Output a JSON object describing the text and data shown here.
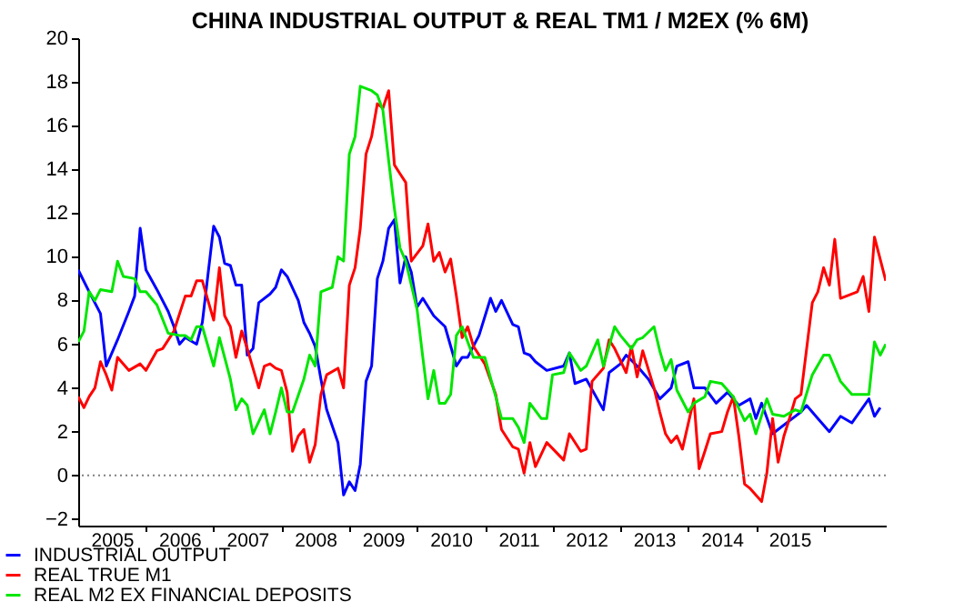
{
  "chart_data": {
    "type": "line",
    "title": "CHINA INDUSTRIAL OUTPUT & REAL TM1 / M2EX (% 6M)",
    "xlim": [
      "2005-01",
      "2016-12"
    ],
    "xticks": [
      {
        "value": "2005-07",
        "label": "2005"
      },
      {
        "value": "2006-01",
        "label": null
      },
      {
        "value": "2006-07",
        "label": "2006"
      },
      {
        "value": "2007-01",
        "label": null
      },
      {
        "value": "2007-07",
        "label": "2007"
      },
      {
        "value": "2008-01",
        "label": null
      },
      {
        "value": "2008-07",
        "label": "2008"
      },
      {
        "value": "2009-01",
        "label": null
      },
      {
        "value": "2009-07",
        "label": "2009"
      },
      {
        "value": "2010-01",
        "label": null
      },
      {
        "value": "2010-07",
        "label": "2010"
      },
      {
        "value": "2011-01",
        "label": null
      },
      {
        "value": "2011-07",
        "label": "2011"
      },
      {
        "value": "2012-01",
        "label": null
      },
      {
        "value": "2012-07",
        "label": "2012"
      },
      {
        "value": "2013-01",
        "label": null
      },
      {
        "value": "2013-07",
        "label": "2013"
      },
      {
        "value": "2014-01",
        "label": null
      },
      {
        "value": "2014-07",
        "label": "2014"
      },
      {
        "value": "2015-01",
        "label": null
      },
      {
        "value": "2015-07",
        "label": "2015"
      },
      {
        "value": "2016-01",
        "label": null
      }
    ],
    "ylim": [
      -2.3,
      20
    ],
    "yticks": [
      -2,
      0,
      2,
      4,
      6,
      8,
      10,
      12,
      14,
      16,
      18,
      20
    ],
    "grid": false,
    "legend": "bottom left",
    "ref_lines": [
      {
        "axis": "y",
        "value": 0,
        "color": "#808080",
        "line_style": "dotted"
      }
    ],
    "series": [
      {
        "name": "INDUSTRIAL OUTPUT",
        "color": "#0000ff",
        "x": [
          "2005-01",
          "2005-03",
          "2005-05",
          "2005-06",
          "2005-08",
          "2005-10",
          "2005-11",
          "2005-12",
          "2006-01",
          "2006-03",
          "2006-05",
          "2006-06",
          "2006-07",
          "2006-08",
          "2006-10",
          "2006-11",
          "2007-01",
          "2007-02",
          "2007-03",
          "2007-04",
          "2007-05",
          "2007-06",
          "2007-07",
          "2007-08",
          "2007-09",
          "2007-11",
          "2007-12",
          "2008-01",
          "2008-02",
          "2008-04",
          "2008-05",
          "2008-06",
          "2008-07",
          "2008-08",
          "2008-09",
          "2008-11",
          "2008-12",
          "2009-01",
          "2009-02",
          "2009-03",
          "2009-04",
          "2009-05",
          "2009-06",
          "2009-07",
          "2009-08",
          "2009-09",
          "2009-10",
          "2009-11",
          "2009-12",
          "2010-01",
          "2010-02",
          "2010-04",
          "2010-06",
          "2010-08",
          "2010-09",
          "2010-10",
          "2010-12",
          "2011-02",
          "2011-03",
          "2011-04",
          "2011-06",
          "2011-07",
          "2011-08",
          "2011-09",
          "2011-10",
          "2011-12",
          "2012-03",
          "2012-04",
          "2012-05",
          "2012-07",
          "2012-10",
          "2012-11",
          "2013-01",
          "2013-02",
          "2013-04",
          "2013-06",
          "2013-08",
          "2013-10",
          "2013-11",
          "2014-01",
          "2014-02",
          "2014-04",
          "2014-06",
          "2014-08",
          "2014-10",
          "2014-12",
          "2015-01",
          "2015-02",
          "2015-04",
          "2015-05",
          "2015-07",
          "2015-09",
          "2015-10",
          "2015-12",
          "2016-02",
          "2016-04",
          "2016-06",
          "2016-09",
          "2016-10",
          "2016-11"
        ],
        "values": [
          9.4,
          8.4,
          7.4,
          5.0,
          6.2,
          7.5,
          8.2,
          11.3,
          9.4,
          8.5,
          7.5,
          6.8,
          6.0,
          6.3,
          6.0,
          7.0,
          11.4,
          10.9,
          9.7,
          9.6,
          8.7,
          8.7,
          5.5,
          5.8,
          7.9,
          8.3,
          8.6,
          9.4,
          9.1,
          8.0,
          7.0,
          6.5,
          5.9,
          4.4,
          3.0,
          1.5,
          -0.9,
          -0.3,
          -0.7,
          0.5,
          4.3,
          5.0,
          9.0,
          9.8,
          11.3,
          11.7,
          8.8,
          10.0,
          9.3,
          7.7,
          8.1,
          7.3,
          6.8,
          5.0,
          5.4,
          5.4,
          6.4,
          8.1,
          7.5,
          8.0,
          6.9,
          6.8,
          5.6,
          5.5,
          5.2,
          4.8,
          5.0,
          5.6,
          4.2,
          4.4,
          3.0,
          4.7,
          5.1,
          5.5,
          5.0,
          4.4,
          3.5,
          4.0,
          5.0,
          5.2,
          4.0,
          4.0,
          3.3,
          3.8,
          3.2,
          3.5,
          2.6,
          3.3,
          1.9,
          2.1,
          2.5,
          2.9,
          3.2,
          2.6,
          2.0,
          2.7,
          2.4,
          3.5,
          2.7,
          3.1
        ]
      },
      {
        "name": "REAL TRUE M1",
        "color": "#ff0000",
        "x": [
          "2005-01",
          "2005-02",
          "2005-03",
          "2005-04",
          "2005-05",
          "2005-06",
          "2005-07",
          "2005-08",
          "2005-10",
          "2005-12",
          "2006-01",
          "2006-03",
          "2006-04",
          "2006-06",
          "2006-08",
          "2006-09",
          "2006-10",
          "2006-11",
          "2007-01",
          "2007-02",
          "2007-03",
          "2007-04",
          "2007-05",
          "2007-06",
          "2007-07",
          "2007-09",
          "2007-10",
          "2007-11",
          "2007-12",
          "2008-01",
          "2008-02",
          "2008-03",
          "2008-04",
          "2008-05",
          "2008-06",
          "2008-07",
          "2008-08",
          "2008-09",
          "2008-11",
          "2008-12",
          "2009-01",
          "2009-02",
          "2009-03",
          "2009-04",
          "2009-05",
          "2009-06",
          "2009-07",
          "2009-08",
          "2009-09",
          "2009-10",
          "2009-11",
          "2009-12",
          "2010-02",
          "2010-03",
          "2010-04",
          "2010-05",
          "2010-06",
          "2010-07",
          "2010-08",
          "2010-09",
          "2010-10",
          "2010-11",
          "2011-01",
          "2011-03",
          "2011-04",
          "2011-06",
          "2011-07",
          "2011-08",
          "2011-09",
          "2011-10",
          "2011-12",
          "2012-03",
          "2012-04",
          "2012-06",
          "2012-07",
          "2012-08",
          "2012-10",
          "2012-11",
          "2012-12",
          "2013-02",
          "2013-03",
          "2013-04",
          "2013-05",
          "2013-07",
          "2013-08",
          "2013-09",
          "2013-10",
          "2013-11",
          "2013-12",
          "2014-02",
          "2014-03",
          "2014-04",
          "2014-05",
          "2014-07",
          "2014-08",
          "2014-09",
          "2014-10",
          "2014-11",
          "2014-12",
          "2015-02",
          "2015-03",
          "2015-04",
          "2015-05",
          "2015-06",
          "2015-07",
          "2015-08",
          "2015-09",
          "2015-11",
          "2015-12",
          "2016-01",
          "2016-02",
          "2016-03",
          "2016-04",
          "2016-07",
          "2016-08",
          "2016-09",
          "2016-10",
          "2016-12"
        ],
        "values": [
          3.6,
          3.1,
          3.6,
          4.0,
          5.2,
          4.6,
          3.9,
          5.4,
          4.8,
          5.1,
          4.8,
          5.7,
          5.8,
          6.6,
          8.2,
          8.2,
          8.9,
          8.9,
          7.1,
          9.5,
          7.3,
          6.8,
          5.4,
          6.6,
          5.8,
          4.0,
          5.0,
          5.1,
          4.9,
          4.8,
          3.8,
          1.1,
          1.8,
          2.1,
          0.6,
          1.4,
          3.7,
          4.6,
          4.9,
          4.0,
          8.7,
          9.5,
          11.3,
          14.7,
          15.5,
          17.0,
          16.8,
          17.6,
          14.2,
          13.8,
          13.4,
          9.8,
          10.5,
          11.5,
          9.8,
          10.2,
          9.3,
          9.9,
          8.2,
          6.3,
          6.8,
          5.9,
          5.1,
          3.7,
          2.1,
          1.3,
          1.2,
          0.1,
          1.5,
          0.4,
          1.5,
          0.7,
          1.9,
          1.1,
          1.2,
          4.3,
          4.9,
          6.2,
          5.8,
          4.7,
          5.9,
          4.5,
          5.7,
          4.0,
          2.9,
          1.9,
          1.5,
          1.8,
          1.2,
          3.5,
          0.3,
          1.1,
          1.9,
          2.0,
          2.9,
          3.6,
          1.8,
          -0.4,
          -0.6,
          -1.2,
          0.1,
          2.6,
          0.6,
          1.8,
          2.6,
          3.5,
          3.7,
          7.9,
          8.4,
          9.5,
          8.7,
          10.8,
          8.1,
          8.4,
          9.1,
          7.5,
          10.9,
          8.9
        ]
      },
      {
        "name": "REAL M2 EX FINANCIAL DEPOSITS",
        "color": "#00e600",
        "x": [
          "2005-01",
          "2005-02",
          "2005-03",
          "2005-04",
          "2005-05",
          "2005-07",
          "2005-08",
          "2005-09",
          "2005-11",
          "2005-12",
          "2006-01",
          "2006-03",
          "2006-05",
          "2006-07",
          "2006-08",
          "2006-09",
          "2006-10",
          "2006-11",
          "2007-01",
          "2007-02",
          "2007-04",
          "2007-05",
          "2007-06",
          "2007-07",
          "2007-08",
          "2007-10",
          "2007-11",
          "2007-12",
          "2008-01",
          "2008-02",
          "2008-03",
          "2008-05",
          "2008-06",
          "2008-07",
          "2008-08",
          "2008-10",
          "2008-11",
          "2008-12",
          "2009-01",
          "2009-02",
          "2009-03",
          "2009-05",
          "2009-06",
          "2009-07",
          "2009-08",
          "2009-09",
          "2009-10",
          "2009-11",
          "2010-01",
          "2010-02",
          "2010-03",
          "2010-04",
          "2010-05",
          "2010-06",
          "2010-07",
          "2010-08",
          "2010-09",
          "2010-11",
          "2011-01",
          "2011-03",
          "2011-04",
          "2011-06",
          "2011-07",
          "2011-08",
          "2011-09",
          "2011-11",
          "2011-12",
          "2012-01",
          "2012-03",
          "2012-04",
          "2012-06",
          "2012-07",
          "2012-09",
          "2012-10",
          "2012-12",
          "2013-01",
          "2013-03",
          "2013-04",
          "2013-05",
          "2013-07",
          "2013-08",
          "2013-09",
          "2013-10",
          "2013-11",
          "2014-01",
          "2014-02",
          "2014-04",
          "2014-05",
          "2014-07",
          "2014-09",
          "2014-11",
          "2014-12",
          "2015-01",
          "2015-03",
          "2015-04",
          "2015-06",
          "2015-08",
          "2015-09",
          "2015-11",
          "2016-01",
          "2016-02",
          "2016-04",
          "2016-06",
          "2016-09",
          "2016-10",
          "2016-11",
          "2016-12"
        ],
        "values": [
          6.1,
          6.6,
          8.4,
          8.0,
          8.5,
          8.4,
          9.8,
          9.1,
          9.0,
          8.4,
          8.4,
          7.8,
          6.5,
          6.4,
          6.4,
          6.2,
          6.8,
          6.8,
          5.0,
          6.3,
          4.4,
          3.0,
          3.5,
          3.2,
          1.9,
          3.0,
          1.9,
          2.9,
          4.0,
          2.9,
          2.9,
          4.4,
          5.5,
          5.0,
          8.4,
          8.6,
          10.0,
          9.8,
          14.7,
          15.5,
          17.8,
          17.6,
          17.4,
          16.7,
          14.4,
          12.2,
          10.4,
          9.8,
          7.6,
          5.4,
          3.5,
          4.8,
          3.3,
          3.3,
          3.7,
          6.4,
          6.8,
          5.4,
          5.4,
          3.6,
          2.6,
          2.6,
          2.2,
          1.5,
          3.3,
          2.6,
          2.6,
          4.6,
          4.7,
          5.6,
          4.8,
          5.0,
          6.2,
          5.0,
          6.8,
          6.4,
          5.8,
          6.2,
          6.3,
          6.8,
          5.7,
          4.8,
          5.3,
          3.9,
          2.9,
          3.3,
          3.6,
          4.3,
          4.2,
          3.6,
          2.5,
          2.8,
          1.9,
          3.5,
          2.8,
          2.7,
          3.0,
          2.9,
          4.6,
          5.5,
          5.5,
          4.3,
          3.7,
          3.7,
          6.1,
          5.5,
          6.0
        ]
      }
    ]
  }
}
